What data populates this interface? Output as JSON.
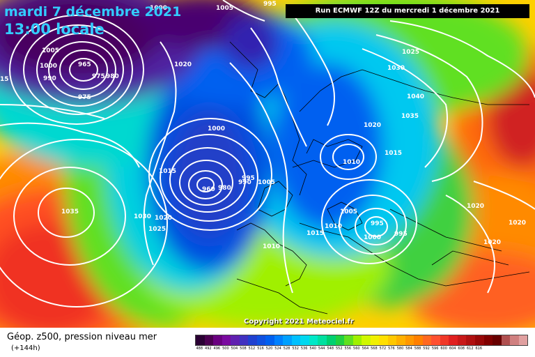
{
  "header": {
    "date_line": "mardi 7 décembre 2021",
    "time_line": "13:00 locale",
    "run_info": "Run ECMWF 12Z du mercredi 1 décembre 2021"
  },
  "footer": {
    "copyright": "Copyright 2021 Meteociel.fr",
    "legend_title": "Géop. z500, pression niveau mer",
    "legend_subtitle": "(+144h)"
  },
  "legend": {
    "colors": [
      "#2a0033",
      "#4b0050",
      "#6a0080",
      "#7a0aa0",
      "#6020b0",
      "#4030c0",
      "#2040d0",
      "#1050e0",
      "#0060f0",
      "#0080ff",
      "#00a0ff",
      "#00c0ff",
      "#00d8f0",
      "#00e8c8",
      "#00e0a0",
      "#00d070",
      "#20d040",
      "#60e020",
      "#a0f000",
      "#d0f800",
      "#f0f000",
      "#ffe000",
      "#ffc800",
      "#ffb000",
      "#ff9800",
      "#ff8000",
      "#ff6820",
      "#ff5030",
      "#f03828",
      "#e02020",
      "#c81818",
      "#b01010",
      "#980808",
      "#800000",
      "#680000",
      "#b05050",
      "#d08080",
      "#e0a0a0"
    ],
    "ticks": [
      "488",
      "492",
      "496",
      "500",
      "504",
      "508",
      "512",
      "516",
      "520",
      "524",
      "528",
      "532",
      "536",
      "540",
      "544",
      "548",
      "552",
      "556",
      "560",
      "564",
      "568",
      "572",
      "576",
      "580",
      "584",
      "588",
      "592",
      "596",
      "600",
      "604",
      "608",
      "612",
      "616",
      "",
      "",
      "",
      "",
      ""
    ]
  },
  "pressure_labels": [
    {
      "text": "1000",
      "kind": "low"
    },
    {
      "text": "1005",
      "kind": "neutral"
    },
    {
      "text": "995",
      "kind": "low"
    },
    {
      "text": "1005",
      "kind": "neutral"
    },
    {
      "text": "1000",
      "kind": "low"
    },
    {
      "text": "965",
      "kind": "low"
    },
    {
      "text": "975",
      "kind": "low"
    },
    {
      "text": "980",
      "kind": "low"
    },
    {
      "text": "990",
      "kind": "low"
    },
    {
      "text": "975",
      "kind": "low"
    },
    {
      "text": "1020",
      "kind": "neutral"
    },
    {
      "text": "15",
      "kind": "neutral"
    },
    {
      "text": "1025",
      "kind": "high"
    },
    {
      "text": "1030",
      "kind": "high"
    },
    {
      "text": "1040",
      "kind": "high"
    },
    {
      "text": "1035",
      "kind": "high"
    },
    {
      "text": "1020",
      "kind": "neutral"
    },
    {
      "text": "1015",
      "kind": "neutral"
    },
    {
      "text": "1000",
      "kind": "low"
    },
    {
      "text": "1015",
      "kind": "neutral"
    },
    {
      "text": "995",
      "kind": "low"
    },
    {
      "text": "990",
      "kind": "low"
    },
    {
      "text": "1005",
      "kind": "neutral"
    },
    {
      "text": "960",
      "kind": "low"
    },
    {
      "text": "980",
      "kind": "low"
    },
    {
      "text": "1010",
      "kind": "neutral"
    },
    {
      "text": "1035",
      "kind": "high"
    },
    {
      "text": "1030",
      "kind": "high"
    },
    {
      "text": "1020",
      "kind": "neutral"
    },
    {
      "text": "1025",
      "kind": "high"
    },
    {
      "text": "1010",
      "kind": "neutral"
    },
    {
      "text": "1005",
      "kind": "neutral"
    },
    {
      "text": "1015",
      "kind": "neutral"
    },
    {
      "text": "1010",
      "kind": "neutral"
    },
    {
      "text": "995",
      "kind": "low"
    },
    {
      "text": "1000",
      "kind": "low"
    },
    {
      "text": "995",
      "kind": "low"
    },
    {
      "text": "1020",
      "kind": "neutral"
    },
    {
      "text": "1020",
      "kind": "neutral"
    },
    {
      "text": "1020",
      "kind": "neutral"
    }
  ]
}
